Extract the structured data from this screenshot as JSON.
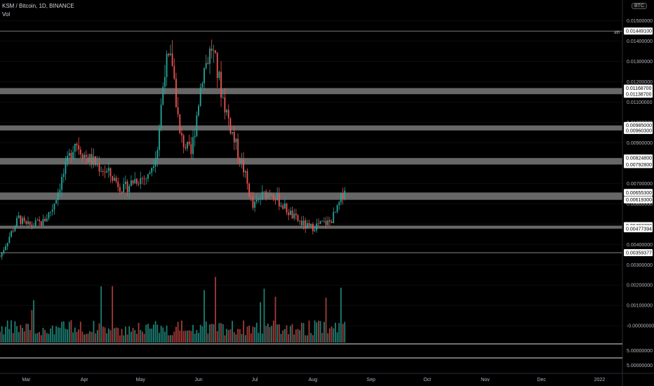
{
  "header": {
    "symbol_line": "KSM / Bitcoin, 1D, BINANCE",
    "volume_label": "Vol",
    "currency_badge": "BTC"
  },
  "price_axis": {
    "ticks": [
      "0.01500000",
      "0.01400000",
      "0.01300000",
      "0.01200000",
      "0.01100000",
      "0.01000000",
      "0.00900000",
      "0.00800000",
      "0.00700000",
      "0.00600000",
      "0.00500000",
      "0.00400000",
      "0.00300000",
      "0.00200000",
      "0.00100000",
      "-0.00000000"
    ],
    "ath_label": "ath",
    "level_labels": [
      "0.01449100",
      "0.01168700",
      "0.01138700",
      "0.00985000",
      "0.00960300",
      "0.00824800",
      "0.00792800",
      "0.00655300",
      "0.00619300",
      "0.00492200",
      "0.00477394",
      "0.00359377"
    ],
    "lower_pane_ticks": [
      "5.00000000",
      "5.00000000"
    ]
  },
  "time_axis": {
    "labels": [
      "Mar",
      "Apr",
      "May",
      "Jun",
      "Jul",
      "Aug",
      "Sep",
      "Oct",
      "Nov",
      "Dec",
      "2022"
    ]
  },
  "chart_data": {
    "type": "candlestick",
    "title": "KSM / Bitcoin, 1D, BINANCE",
    "ylim": [
      -0.0002,
      0.0155
    ],
    "resistance_zones": [
      {
        "low": 0.011387,
        "high": 0.011687
      },
      {
        "low": 0.009603,
        "high": 0.00985
      },
      {
        "low": 0.007928,
        "high": 0.008248
      },
      {
        "low": 0.006193,
        "high": 0.006553
      },
      {
        "low": 0.00477394,
        "high": 0.004922
      }
    ],
    "levels": [
      0.014491,
      0.00359377
    ],
    "price_path": [
      {
        "date": "Feb 15",
        "close": 0.0034
      },
      {
        "date": "Feb 20",
        "close": 0.0044
      },
      {
        "date": "Feb 25",
        "close": 0.0053
      },
      {
        "date": "Mar 1",
        "close": 0.0049
      },
      {
        "date": "Mar 10",
        "close": 0.0051
      },
      {
        "date": "Mar 15",
        "close": 0.0058
      },
      {
        "date": "Mar 20",
        "close": 0.0072
      },
      {
        "date": "Mar 27",
        "close": 0.0091
      },
      {
        "date": "Apr 1",
        "close": 0.0084
      },
      {
        "date": "Apr 8",
        "close": 0.0079
      },
      {
        "date": "Apr 15",
        "close": 0.0074
      },
      {
        "date": "Apr 22",
        "close": 0.0067
      },
      {
        "date": "Apr 28",
        "close": 0.0072
      },
      {
        "date": "May 5",
        "close": 0.0073
      },
      {
        "date": "May 10",
        "close": 0.0088
      },
      {
        "date": "May 14",
        "close": 0.0128
      },
      {
        "date": "May 18",
        "close": 0.013
      },
      {
        "date": "May 22",
        "close": 0.0093
      },
      {
        "date": "May 28",
        "close": 0.0084
      },
      {
        "date": "Jun 3",
        "close": 0.0124
      },
      {
        "date": "Jun 8",
        "close": 0.0137
      },
      {
        "date": "Jun 14",
        "close": 0.0112
      },
      {
        "date": "Jun 20",
        "close": 0.0091
      },
      {
        "date": "Jun 25",
        "close": 0.0077
      },
      {
        "date": "Jun 30",
        "close": 0.0058
      },
      {
        "date": "Jul 5",
        "close": 0.0064
      },
      {
        "date": "Jul 10",
        "close": 0.0066
      },
      {
        "date": "Jul 15",
        "close": 0.006
      },
      {
        "date": "Jul 22",
        "close": 0.0053
      },
      {
        "date": "Jul 30",
        "close": 0.0048
      },
      {
        "date": "Aug 5",
        "close": 0.005
      },
      {
        "date": "Aug 10",
        "close": 0.0051
      },
      {
        "date": "Aug 14",
        "close": 0.0057
      },
      {
        "date": "Aug 18",
        "close": 0.0068
      }
    ]
  }
}
